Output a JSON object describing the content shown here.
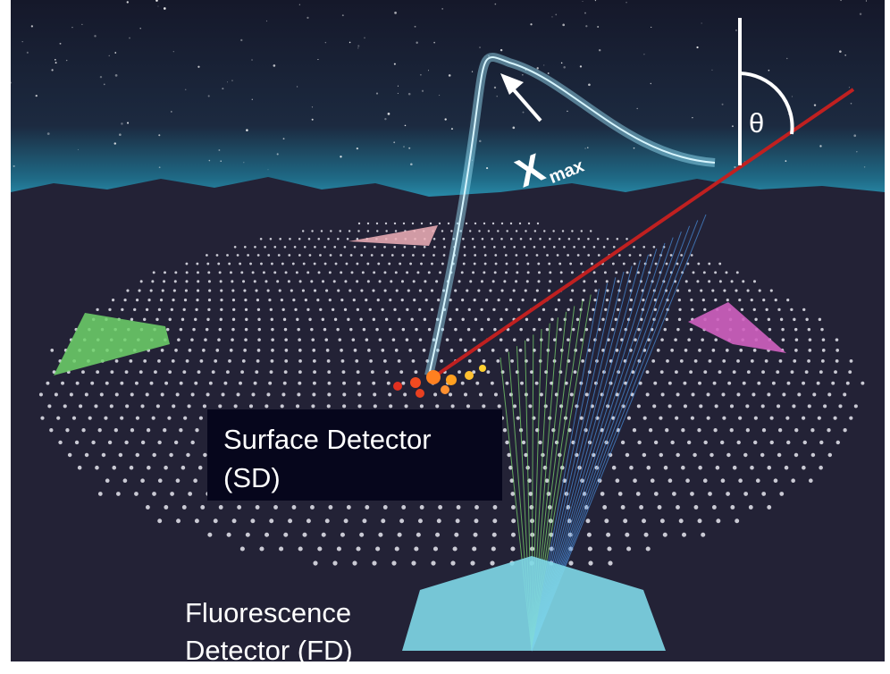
{
  "labels": {
    "theta": "θ",
    "xmax": "X",
    "xmax_sub": "max",
    "sd_line1": "Surface Detector",
    "sd_line2": "(SD)",
    "fd_line1": "Fluorescence",
    "fd_line2": "Detector (FD)"
  }
}
